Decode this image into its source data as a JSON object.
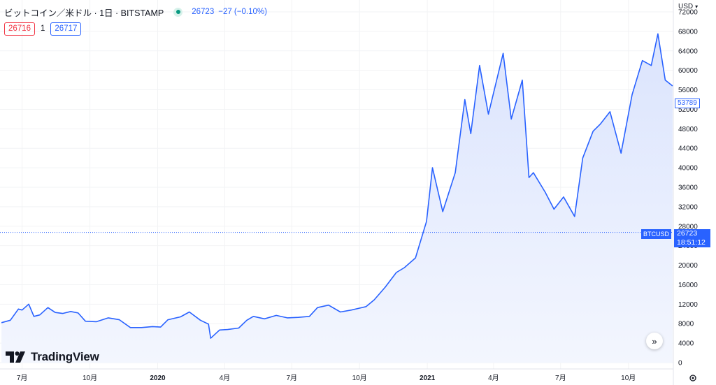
{
  "legend": {
    "symbol_title": "ビットコイン／米ドル · 1日 · BITSTAMP",
    "status_icon": "market-open-dot-icon",
    "last_price": "26723",
    "change": "−27 (−0.10%)"
  },
  "quote": {
    "bid": "26716",
    "spread": "1",
    "ask": "26717"
  },
  "branding": {
    "logo_icon": "tradingview-logo-icon",
    "logo_text": "TradingView"
  },
  "scale": {
    "currency": "USD",
    "currency_menu_icon": "chevron-down-icon",
    "settings_icon": "gear-icon"
  },
  "goto_realtime_icon": "double-chevron-right-icon",
  "badges": {
    "symbol": "BTCUSD",
    "last_price": "26723",
    "countdown": "18:51:12",
    "high_marker": "53789"
  },
  "colors": {
    "line": "#2962ff",
    "area_top": "#dbe4fd",
    "area_bottom": "#f3f6fe",
    "grid": "#f2f3f5",
    "text": "#131722",
    "down": "#f23645"
  },
  "chart_data": {
    "type": "area",
    "series": [
      {
        "x": [
          "2019-06-03",
          "2019-06-15",
          "2019-06-26",
          "2019-07-01",
          "2019-07-10",
          "2019-07-17",
          "2019-07-25",
          "2019-08-05",
          "2019-08-15",
          "2019-08-25",
          "2019-09-05",
          "2019-09-15",
          "2019-09-25",
          "2019-10-10",
          "2019-10-26",
          "2019-11-10",
          "2019-11-25",
          "2019-12-10",
          "2019-12-25",
          "2020-01-05",
          "2020-01-15",
          "2020-02-01",
          "2020-02-13",
          "2020-02-28",
          "2020-03-10",
          "2020-03-13",
          "2020-03-25",
          "2020-04-05",
          "2020-04-20",
          "2020-05-01",
          "2020-05-10",
          "2020-05-25",
          "2020-06-10",
          "2020-06-25",
          "2020-07-10",
          "2020-07-25",
          "2020-08-05",
          "2020-08-20",
          "2020-09-05",
          "2020-09-20",
          "2020-10-10",
          "2020-10-21",
          "2020-11-05",
          "2020-11-20",
          "2020-12-01",
          "2020-12-16",
          "2020-12-31",
          "2021-01-08",
          "2021-01-22",
          "2021-02-08",
          "2021-02-21",
          "2021-03-01",
          "2021-03-13",
          "2021-03-25",
          "2021-04-14",
          "2021-04-25",
          "2021-05-10",
          "2021-05-19",
          "2021-05-25",
          "2021-06-10",
          "2021-06-22",
          "2021-07-05",
          "2021-07-20",
          "2021-07-31",
          "2021-08-14",
          "2021-08-24",
          "2021-09-06",
          "2021-09-21",
          "2021-10-06",
          "2021-10-20",
          "2021-11-01",
          "2021-11-10",
          "2021-11-20",
          "2021-11-30"
        ],
        "values": [
          8200,
          8700,
          11000,
          10800,
          12000,
          9500,
          9800,
          11300,
          10300,
          10100,
          10500,
          10200,
          8500,
          8400,
          9200,
          8800,
          7200,
          7200,
          7400,
          7300,
          8800,
          9400,
          10400,
          8700,
          7900,
          5000,
          6700,
          6800,
          7100,
          8700,
          9500,
          9000,
          9700,
          9200,
          9300,
          9500,
          11300,
          11800,
          10400,
          10800,
          11500,
          12900,
          15500,
          18500,
          19500,
          21500,
          29000,
          40000,
          31000,
          39000,
          54000,
          47000,
          61000,
          51000,
          63500,
          50000,
          58000,
          38000,
          39000,
          35000,
          31500,
          34000,
          30000,
          42000,
          47500,
          49000,
          51500,
          43000,
          55000,
          62000,
          61000,
          67500,
          58000,
          56800
        ],
        "name": ""
      }
    ],
    "title": "",
    "xlabel": "",
    "ylabel": "",
    "x_tick_labels": [
      "7月",
      "10月",
      "2020",
      "4月",
      "7月",
      "10月",
      "2021",
      "4月",
      "7月",
      "10月"
    ],
    "y_tick_labels": [
      "0",
      "4000",
      "8000",
      "12000",
      "16000",
      "20000",
      "24000",
      "28000",
      "32000",
      "36000",
      "40000",
      "44000",
      "48000",
      "52000",
      "56000",
      "60000",
      "64000",
      "68000",
      "72000"
    ],
    "ylim": [
      0,
      72000
    ],
    "xlim": [
      "2019-06-01",
      "2021-12-01"
    ],
    "grid": true,
    "last_price_line": 26723,
    "legend_placement": "top-left"
  }
}
